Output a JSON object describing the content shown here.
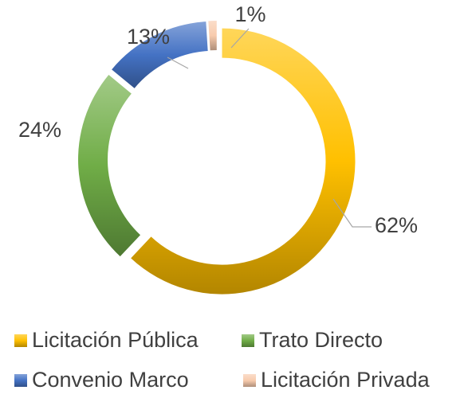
{
  "chart_data": {
    "type": "donut",
    "categories": [
      "Licitación Pública",
      "Trato Directo",
      "Convenio Marco",
      "Licitación Privada"
    ],
    "values": [
      62,
      24,
      13,
      1
    ],
    "value_labels": [
      "62%",
      "24%",
      "13%",
      "1%"
    ],
    "colors": [
      "#ffc000",
      "#70ad47",
      "#4472c4",
      "#f8cbad"
    ],
    "legend": "bottom"
  }
}
